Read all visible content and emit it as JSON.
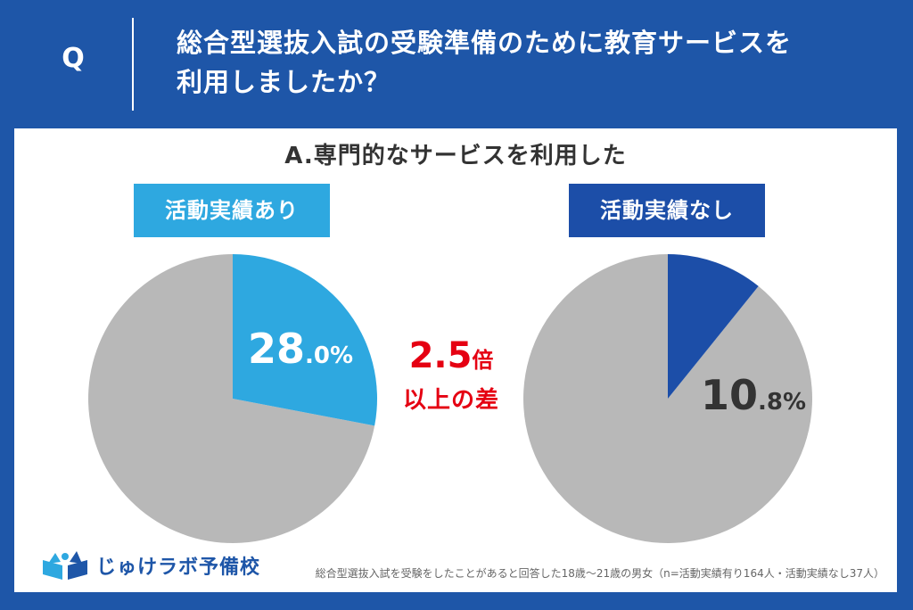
{
  "question": {
    "marker": "Q",
    "line1": "総合型選抜入試の受験準備のために教育サービスを",
    "line2": "利用しましたか？"
  },
  "answer_title": "A.専門的なサービスを利用した",
  "comparison": {
    "multiplier_number": "2.5",
    "multiplier_unit": "倍",
    "subtext": "以上の差"
  },
  "logo": {
    "text": "じゅけラボ予備校"
  },
  "footnote": "総合型選抜入試を受験をしたことがあると回答した18歳〜21歳の男女（n=活動実績有り164人・活動実績なし37人）",
  "colors": {
    "background": "#1e56a8",
    "left_highlight": "#2ea8e0",
    "right_highlight": "#1c4ea8",
    "remainder": "#b8b8b8",
    "comparison_text": "#e50012"
  },
  "chart_data": [
    {
      "type": "pie",
      "title": "活動実績あり",
      "slices": [
        {
          "label": "",
          "value": 28.0
        },
        {
          "label": "",
          "value": 72.0
        }
      ],
      "display": {
        "int_part": "28",
        "dec_part": ".0%"
      }
    },
    {
      "type": "pie",
      "title": "活動実績なし",
      "slices": [
        {
          "label": "",
          "value": 10.8
        },
        {
          "label": "",
          "value": 89.2
        }
      ],
      "display": {
        "int_part": "10",
        "dec_part": ".8%"
      }
    }
  ]
}
